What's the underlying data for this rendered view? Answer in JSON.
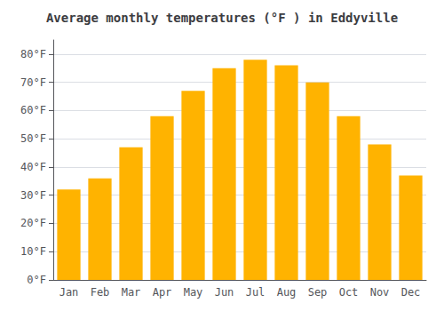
{
  "chart_data": {
    "type": "bar",
    "title": "Average monthly temperatures (°F ) in Eddyville",
    "categories": [
      "Jan",
      "Feb",
      "Mar",
      "Apr",
      "May",
      "Jun",
      "Jul",
      "Aug",
      "Sep",
      "Oct",
      "Nov",
      "Dec"
    ],
    "values": [
      32,
      36,
      47,
      58,
      67,
      75,
      78,
      76,
      70,
      58,
      48,
      37
    ],
    "color": "#FFB300",
    "ylim": [
      0,
      85
    ],
    "yticks": [
      {
        "value": 0,
        "label": "0°F"
      },
      {
        "value": 10,
        "label": "10°F"
      },
      {
        "value": 20,
        "label": "20°F"
      },
      {
        "value": 30,
        "label": "30°F"
      },
      {
        "value": 40,
        "label": "40°F"
      },
      {
        "value": 50,
        "label": "50°F"
      },
      {
        "value": 60,
        "label": "60°F"
      },
      {
        "value": 70,
        "label": "70°F"
      },
      {
        "value": 80,
        "label": "80°F"
      }
    ],
    "grid": true
  }
}
